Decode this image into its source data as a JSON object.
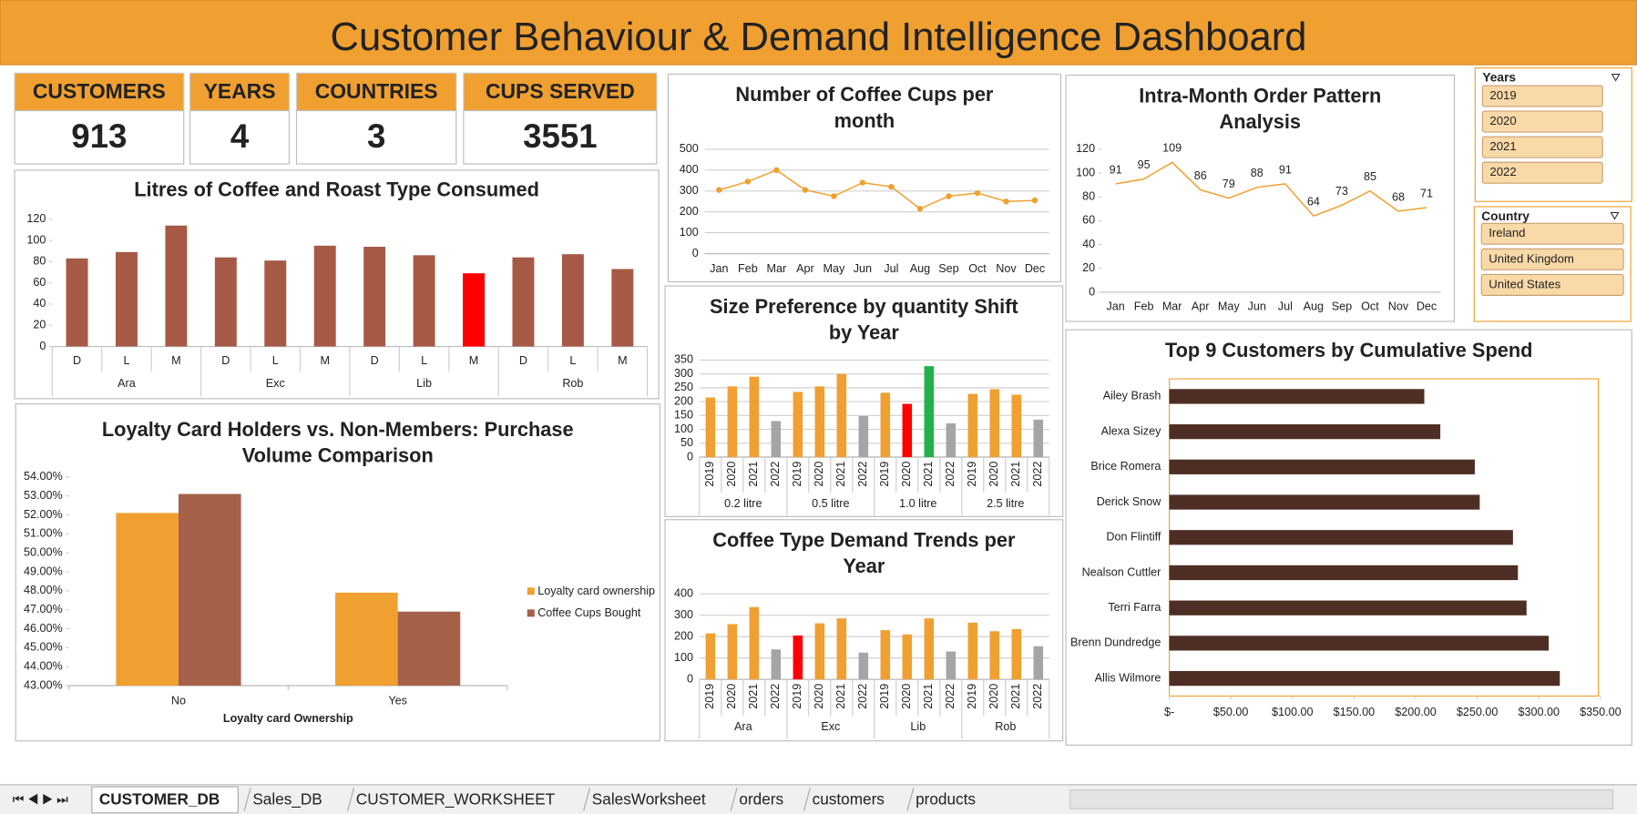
{
  "title": "Customer Behaviour & Demand Intelligence Dashboard",
  "kpis": [
    {
      "label": "CUSTOMERS",
      "value": 913
    },
    {
      "label": "YEARS",
      "value": 4
    },
    {
      "label": "COUNTRIES",
      "value": 3
    },
    {
      "label": "CUPS SERVED",
      "value": 3551
    }
  ],
  "chart_data": [
    {
      "type": "bar",
      "title": "Litres of Coffee and Roast Type Consumed",
      "groups": [
        "Ara",
        "Exc",
        "Lib",
        "Rob"
      ],
      "categories": [
        "D",
        "L",
        "M",
        "D",
        "L",
        "M",
        "D",
        "L",
        "M",
        "D",
        "L",
        "M"
      ],
      "values": [
        83,
        89,
        114,
        84,
        81,
        95,
        94,
        86,
        69,
        84,
        87,
        73
      ],
      "colors": [
        "#a65a45",
        "#a65a45",
        "#a65a45",
        "#a65a45",
        "#a65a45",
        "#a65a45",
        "#a65a45",
        "#a65a45",
        "#ff0000",
        "#a65a45",
        "#a65a45",
        "#a65a45"
      ],
      "ylim": [
        0,
        120
      ],
      "yticks": [
        0,
        20,
        40,
        60,
        80,
        100,
        120
      ],
      "grid": false
    },
    {
      "type": "line",
      "title": [
        "Number of Coffee Cups  per",
        "month"
      ],
      "categories": [
        "Jan",
        "Feb",
        "Mar",
        "Apr",
        "May",
        "Jun",
        "Jul",
        "Aug",
        "Sep",
        "Oct",
        "Nov",
        "Dec"
      ],
      "values": [
        305,
        345,
        400,
        305,
        275,
        340,
        320,
        215,
        275,
        290,
        250,
        255
      ],
      "color": "#f0a030",
      "markers": true,
      "ylim": [
        0,
        500
      ],
      "yticks": [
        0,
        100,
        200,
        300,
        400,
        500
      ],
      "grid": true
    },
    {
      "type": "line",
      "title": [
        "Intra-Month  Order Pattern",
        "Analysis"
      ],
      "categories": [
        "Jan",
        "Feb",
        "Mar",
        "Apr",
        "May",
        "Jun",
        "Jul",
        "Aug",
        "Sep",
        "Oct",
        "Nov",
        "Dec"
      ],
      "values": [
        91,
        95,
        109,
        86,
        79,
        88,
        91,
        64,
        73,
        85,
        68,
        71
      ],
      "color": "#f0a030",
      "data_labels": true,
      "ylim": [
        0,
        120
      ],
      "yticks": [
        0,
        20,
        40,
        60,
        80,
        100,
        120
      ],
      "grid": false
    },
    {
      "type": "bar",
      "title": [
        "Size Preference by quantity  Shift",
        "by Year"
      ],
      "groups": [
        "0.2 litre",
        "0.5 litre",
        "1.0 litre",
        "2.5 litre"
      ],
      "categories": [
        "2019",
        "2020",
        "2021",
        "2022",
        "2019",
        "2020",
        "2021",
        "2022",
        "2019",
        "2020",
        "2021",
        "2022",
        "2019",
        "2020",
        "2021",
        "2022"
      ],
      "values": [
        215,
        255,
        290,
        130,
        235,
        255,
        300,
        148,
        232,
        192,
        328,
        122,
        228,
        245,
        225,
        135
      ],
      "colors": [
        "#f0a030",
        "#f0a030",
        "#f0a030",
        "#a5a5a5",
        "#f0a030",
        "#f0a030",
        "#f0a030",
        "#a5a5a5",
        "#f0a030",
        "#ff0000",
        "#22b14c",
        "#a5a5a5",
        "#f0a030",
        "#f0a030",
        "#f0a030",
        "#a5a5a5"
      ],
      "ylim": [
        0,
        350
      ],
      "yticks": [
        0,
        50,
        100,
        150,
        200,
        250,
        300,
        350
      ],
      "grid": true
    },
    {
      "type": "bar",
      "title": [
        "Coffee Type Demand Trends per",
        "Year"
      ],
      "groups": [
        "Ara",
        "Exc",
        "Lib",
        "Rob"
      ],
      "categories": [
        "2019",
        "2020",
        "2021",
        "2022",
        "2019",
        "2020",
        "2021",
        "2022",
        "2019",
        "2020",
        "2021",
        "2022",
        "2019",
        "2020",
        "2021",
        "2022"
      ],
      "values": [
        215,
        258,
        338,
        140,
        205,
        262,
        285,
        125,
        230,
        210,
        285,
        130,
        265,
        225,
        235,
        155
      ],
      "colors": [
        "#f0a030",
        "#f0a030",
        "#f0a030",
        "#a5a5a5",
        "#ff0000",
        "#f0a030",
        "#f0a030",
        "#a5a5a5",
        "#f0a030",
        "#f0a030",
        "#f0a030",
        "#a5a5a5",
        "#f0a030",
        "#f0a030",
        "#f0a030",
        "#a5a5a5"
      ],
      "ylim": [
        0,
        400
      ],
      "yticks": [
        0,
        100,
        200,
        300,
        400
      ],
      "grid": true
    },
    {
      "type": "bar",
      "title": [
        "Loyalty Card Holders vs. Non-Members:  Purchase",
        "Volume Comparison"
      ],
      "categories": [
        "No",
        "Yes"
      ],
      "xlabel": "Loyalty card Ownership",
      "series": [
        {
          "name": "Loyalty card ownership",
          "color": "#f0a030",
          "values": [
            52.1,
            47.9
          ]
        },
        {
          "name": "Coffee Cups Bought",
          "color": "#a5614a",
          "values": [
            53.1,
            46.9
          ]
        }
      ],
      "legend": "right",
      "grid": false,
      "ylim": [
        43,
        54
      ],
      "yticks": [
        {
          "value": 43,
          "label": "43.00%"
        },
        {
          "value": 44,
          "label": "44.00%"
        },
        {
          "value": 45,
          "label": "45.00%"
        },
        {
          "value": 46,
          "label": "46.00%"
        },
        {
          "value": 47,
          "label": "47.00%"
        },
        {
          "value": 48,
          "label": "48.00%"
        },
        {
          "value": 49,
          "label": "49.00%"
        },
        {
          "value": 50,
          "label": "50.00%"
        },
        {
          "value": 51,
          "label": "51.00%"
        },
        {
          "value": 52,
          "label": "52.00%"
        },
        {
          "value": 53,
          "label": "53.00%"
        },
        {
          "value": 54,
          "label": "54.00%"
        }
      ]
    },
    {
      "type": "hbar",
      "title": "Top 9 Customers by Cumulative Spend",
      "categories": [
        "Ailey Brash",
        "Alexa Sizey",
        "Brice Romera",
        "Derick Snow",
        "Don Flintiff",
        "Nealson Cuttler",
        "Terri Farra",
        "Brenn Dundredge",
        "Allis Wilmore"
      ],
      "values": [
        207,
        220,
        248,
        252,
        279,
        283,
        290,
        308,
        317
      ],
      "color": "#4e2e24",
      "xlim": [
        0,
        350
      ],
      "xticks": [
        {
          "value": 0,
          "label": "$-"
        },
        {
          "value": 50,
          "label": "$50.00"
        },
        {
          "value": 100,
          "label": "$100.00"
        },
        {
          "value": 150,
          "label": "$150.00"
        },
        {
          "value": 200,
          "label": "$200.00"
        },
        {
          "value": 250,
          "label": "$250.00"
        },
        {
          "value": 300,
          "label": "$300.00"
        },
        {
          "value": 350,
          "label": "$350.00"
        }
      ]
    }
  ],
  "slicers": [
    {
      "title": "Years",
      "items": [
        "2019",
        "2020",
        "2021",
        "2022"
      ]
    },
    {
      "title": "Country",
      "items": [
        "Ireland",
        "United Kingdom",
        "United States"
      ]
    }
  ],
  "sheet_tabs": [
    "CUSTOMER_DB",
    "Sales_DB",
    "CUSTOMER_WORKSHEET",
    "SalesWorksheet",
    "orders",
    "customers",
    "products"
  ]
}
